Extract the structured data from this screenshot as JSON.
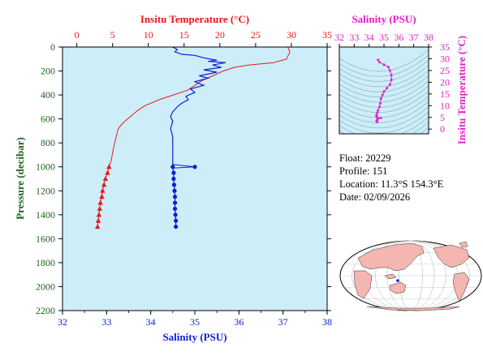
{
  "main_plot": {
    "top_axis_label": "Insitu Temperature (°C)",
    "bottom_axis_label": "Salinity (PSU)",
    "left_axis_label": "Pressure (decibar)",
    "temp_ticks": [
      "0",
      "5",
      "10",
      "15",
      "20",
      "25",
      "30",
      "35"
    ],
    "sal_ticks": [
      "32",
      "33",
      "34",
      "35",
      "36",
      "37",
      "38"
    ],
    "pressure_ticks": [
      "0",
      "200",
      "400",
      "600",
      "800",
      "1000",
      "1200",
      "1400",
      "1600",
      "1800",
      "2000",
      "2200"
    ]
  },
  "inset_plot": {
    "top_axis_label": "Salinity (PSU)",
    "right_axis_label": "Insitu Temperature (°C)",
    "sal_ticks": [
      "32",
      "33",
      "34",
      "35",
      "36",
      "37",
      "38"
    ],
    "temp_ticks": [
      "0",
      "5",
      "10",
      "15",
      "20",
      "25",
      "30",
      "35"
    ]
  },
  "float_info": {
    "float_label": "Float:",
    "float_value": "20229",
    "profile_label": "Profile:",
    "profile_value": "151",
    "location_label": "Location:",
    "location_value": "11.3°S  154.3°E",
    "date_label": "Date:",
    "date_value": "02/09/2026"
  },
  "colors": {
    "plot_bg": "#cdeef8",
    "temperature": "#e41a1c",
    "salinity": "#0a1fd6",
    "inset_ts": "#e020c8",
    "pressure_axis": "#1f5f1f",
    "map_land": "#f4b6b0",
    "map_ocean": "#ffffff"
  },
  "chart_data": [
    {
      "type": "line",
      "name_ref": "temperature-profile",
      "x_axis": "temperature",
      "xlim": [
        -2,
        35
      ],
      "ylim": [
        0,
        2200
      ],
      "y_inverted": true,
      "profile": [
        [
          29.5,
          0
        ],
        [
          29.8,
          40
        ],
        [
          29.3,
          100
        ],
        [
          27.5,
          130
        ],
        [
          24.0,
          150
        ],
        [
          22.0,
          170
        ],
        [
          20.5,
          200
        ],
        [
          19.0,
          240
        ],
        [
          17.5,
          280
        ],
        [
          16.5,
          320
        ],
        [
          15.5,
          360
        ],
        [
          13.5,
          400
        ],
        [
          11.5,
          440
        ],
        [
          9.5,
          490
        ],
        [
          8.5,
          530
        ],
        [
          7.5,
          580
        ],
        [
          6.5,
          630
        ],
        [
          5.8,
          680
        ],
        [
          5.5,
          750
        ],
        [
          5.1,
          850
        ],
        [
          4.8,
          950
        ],
        [
          4.5,
          1000
        ]
      ],
      "markers": [
        [
          4.5,
          1000
        ],
        [
          4.3,
          1050
        ],
        [
          4.0,
          1100
        ],
        [
          3.8,
          1150
        ],
        [
          3.6,
          1200
        ],
        [
          3.5,
          1250
        ],
        [
          3.3,
          1300
        ],
        [
          3.2,
          1350
        ],
        [
          3.1,
          1400
        ],
        [
          3.0,
          1450
        ],
        [
          2.9,
          1500
        ]
      ]
    },
    {
      "type": "line",
      "name_ref": "salinity-profile",
      "x_axis": "salinity",
      "xlim": [
        32,
        38
      ],
      "ylim": [
        0,
        2200
      ],
      "y_inverted": true,
      "profile": [
        [
          34.5,
          0
        ],
        [
          34.6,
          20
        ],
        [
          34.55,
          40
        ],
        [
          34.7,
          60
        ],
        [
          35.0,
          70
        ],
        [
          35.2,
          90
        ],
        [
          35.5,
          110
        ],
        [
          35.3,
          120
        ],
        [
          35.7,
          130
        ],
        [
          35.4,
          150
        ],
        [
          35.6,
          170
        ],
        [
          35.2,
          190
        ],
        [
          35.5,
          210
        ],
        [
          35.1,
          240
        ],
        [
          35.3,
          260
        ],
        [
          35.0,
          290
        ],
        [
          35.2,
          320
        ],
        [
          34.9,
          350
        ],
        [
          35.0,
          380
        ],
        [
          34.8,
          410
        ],
        [
          34.85,
          440
        ],
        [
          34.7,
          470
        ],
        [
          34.6,
          500
        ],
        [
          34.5,
          540
        ],
        [
          34.45,
          580
        ],
        [
          34.5,
          620
        ],
        [
          34.45,
          680
        ],
        [
          34.5,
          750
        ],
        [
          34.5,
          850
        ],
        [
          34.5,
          950
        ],
        [
          34.5,
          1000
        ]
      ],
      "spike": [
        [
          34.5,
          980
        ],
        [
          35.0,
          1000
        ],
        [
          34.5,
          1010
        ]
      ],
      "markers": [
        [
          34.5,
          1000
        ],
        [
          34.52,
          1050
        ],
        [
          34.52,
          1100
        ],
        [
          34.53,
          1150
        ],
        [
          34.54,
          1200
        ],
        [
          34.55,
          1250
        ],
        [
          34.55,
          1300
        ],
        [
          34.55,
          1350
        ],
        [
          34.56,
          1400
        ],
        [
          34.57,
          1450
        ],
        [
          34.57,
          1500
        ]
      ]
    },
    {
      "type": "scatter",
      "name_ref": "ts-diagram",
      "x_axis": "salinity",
      "y_axis": "temperature",
      "xlim": [
        32,
        38
      ],
      "ylim": [
        -2,
        35
      ],
      "points": [
        [
          34.6,
          29.5
        ],
        [
          34.7,
          28.5
        ],
        [
          35.0,
          27.5
        ],
        [
          35.3,
          26.5
        ],
        [
          35.4,
          25.0
        ],
        [
          35.5,
          23.0
        ],
        [
          35.5,
          21.0
        ],
        [
          35.4,
          19.0
        ],
        [
          35.2,
          17.5
        ],
        [
          35.0,
          16.0
        ],
        [
          34.9,
          14.5
        ],
        [
          34.8,
          13.0
        ],
        [
          34.75,
          11.0
        ],
        [
          34.7,
          9.5
        ],
        [
          34.6,
          8.0
        ],
        [
          34.55,
          7.0
        ],
        [
          34.5,
          6.0
        ],
        [
          34.5,
          5.5
        ],
        [
          34.55,
          5.0
        ],
        [
          34.6,
          4.6
        ],
        [
          34.8,
          4.8
        ],
        [
          34.55,
          4.0
        ],
        [
          34.5,
          3.5
        ],
        [
          34.55,
          3.0
        ]
      ]
    }
  ]
}
